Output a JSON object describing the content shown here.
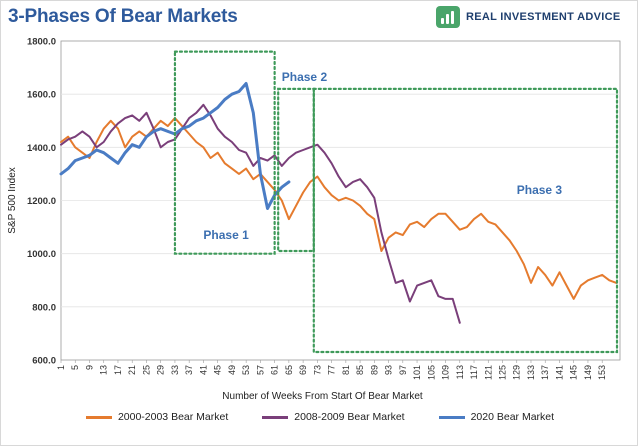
{
  "chart_data": {
    "type": "line",
    "title": "3-Phases Of Bear Markets",
    "brand": "REAL INVESTMENT ADVICE",
    "xlabel": "Number of Weeks From Start Of Bear Market",
    "ylabel": "S&P 500 Index",
    "ylim": [
      600,
      1800
    ],
    "yticks": [
      "600.0",
      "800.0",
      "1000.0",
      "1200.0",
      "1400.0",
      "1600.0",
      "1800.0"
    ],
    "xlim": [
      1,
      158
    ],
    "xticks": [
      1,
      5,
      9,
      13,
      17,
      21,
      25,
      29,
      33,
      37,
      41,
      45,
      49,
      53,
      57,
      61,
      65,
      69,
      73,
      77,
      81,
      85,
      89,
      93,
      97,
      101,
      105,
      109,
      113,
      117,
      121,
      125,
      129,
      133,
      137,
      141,
      145,
      149,
      153
    ],
    "series": [
      {
        "name": "2000-2003 Bear Market",
        "color": "#e57b2e",
        "x": [
          1,
          3,
          5,
          7,
          9,
          11,
          13,
          15,
          17,
          19,
          21,
          23,
          25,
          27,
          29,
          31,
          33,
          35,
          37,
          39,
          41,
          43,
          45,
          47,
          49,
          51,
          53,
          55,
          57,
          59,
          61,
          63,
          65,
          67,
          69,
          71,
          73,
          75,
          77,
          79,
          81,
          83,
          85,
          87,
          89,
          91,
          93,
          95,
          97,
          99,
          101,
          103,
          105,
          107,
          109,
          111,
          113,
          115,
          117,
          119,
          121,
          123,
          125,
          127,
          129,
          131,
          133,
          135,
          137,
          139,
          141,
          143,
          145,
          147,
          149,
          151,
          153,
          155,
          157
        ],
        "y": [
          1420,
          1440,
          1400,
          1380,
          1360,
          1420,
          1470,
          1500,
          1470,
          1400,
          1440,
          1460,
          1440,
          1470,
          1500,
          1480,
          1510,
          1480,
          1450,
          1420,
          1400,
          1360,
          1380,
          1340,
          1320,
          1300,
          1320,
          1280,
          1300,
          1270,
          1240,
          1200,
          1130,
          1180,
          1230,
          1270,
          1290,
          1250,
          1220,
          1200,
          1210,
          1200,
          1180,
          1150,
          1130,
          1010,
          1060,
          1080,
          1070,
          1110,
          1120,
          1100,
          1130,
          1150,
          1150,
          1120,
          1090,
          1100,
          1130,
          1150,
          1120,
          1110,
          1080,
          1050,
          1010,
          960,
          890,
          950,
          920,
          880,
          930,
          880,
          830,
          880,
          900,
          910,
          920,
          900,
          890
        ]
      },
      {
        "name": "2008-2009 Bear Market",
        "color": "#7a3f7a",
        "x": [
          1,
          3,
          5,
          7,
          9,
          11,
          13,
          15,
          17,
          19,
          21,
          23,
          25,
          27,
          29,
          31,
          33,
          35,
          37,
          39,
          41,
          43,
          45,
          47,
          49,
          51,
          53,
          55,
          57,
          59,
          61,
          63,
          65,
          67,
          69,
          71,
          73,
          75,
          77,
          79,
          81,
          83,
          85,
          87,
          89,
          91,
          93,
          95,
          97,
          99,
          101,
          103,
          105,
          107,
          109,
          111,
          113
        ],
        "y": [
          1410,
          1430,
          1440,
          1460,
          1440,
          1400,
          1420,
          1460,
          1490,
          1510,
          1520,
          1500,
          1530,
          1470,
          1400,
          1420,
          1430,
          1470,
          1510,
          1530,
          1560,
          1520,
          1470,
          1440,
          1420,
          1390,
          1380,
          1330,
          1360,
          1350,
          1370,
          1330,
          1360,
          1380,
          1390,
          1400,
          1410,
          1380,
          1340,
          1290,
          1250,
          1270,
          1280,
          1250,
          1210,
          1080,
          980,
          890,
          900,
          820,
          880,
          890,
          900,
          840,
          830,
          830,
          740
        ]
      },
      {
        "name": "2020 Bear Market",
        "color": "#4a7cc4",
        "x": [
          1,
          3,
          5,
          7,
          9,
          11,
          13,
          15,
          17,
          19,
          21,
          23,
          25,
          27,
          29,
          31,
          33,
          35,
          37,
          39,
          41,
          43,
          45,
          47,
          49,
          51,
          53,
          55,
          57,
          59,
          61,
          63,
          65
        ],
        "y": [
          1300,
          1320,
          1350,
          1360,
          1370,
          1390,
          1380,
          1360,
          1340,
          1380,
          1410,
          1400,
          1440,
          1460,
          1470,
          1460,
          1450,
          1470,
          1480,
          1500,
          1510,
          1530,
          1550,
          1580,
          1600,
          1610,
          1640,
          1530,
          1300,
          1170,
          1220,
          1250,
          1270
        ]
      }
    ],
    "annotations": [
      {
        "label": "Phase 1",
        "x0": 33,
        "x1": 61,
        "y0": 1000,
        "y1": 1760
      },
      {
        "label": "Phase 2",
        "x0": 62,
        "x1": 72,
        "y0": 1010,
        "y1": 1620
      },
      {
        "label": "Phase 3",
        "x0": 72,
        "x1": 159,
        "y0": 630,
        "y1": 1620
      }
    ]
  }
}
